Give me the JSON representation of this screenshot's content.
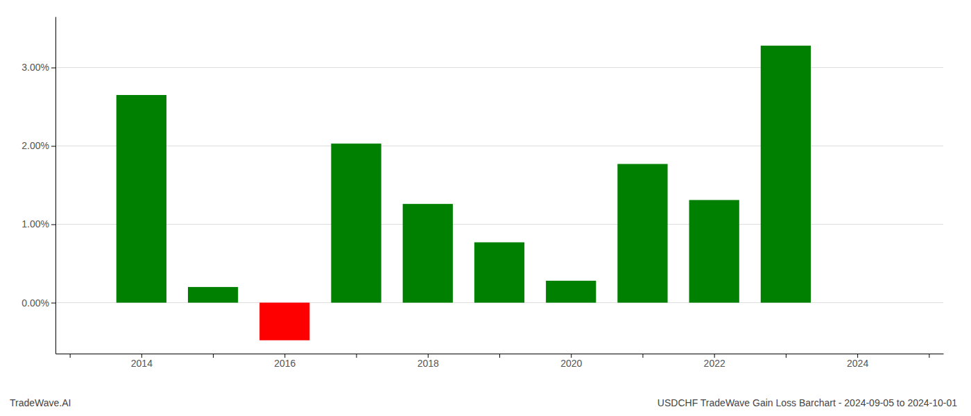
{
  "chart_data": {
    "type": "bar",
    "title": "USDCHF TradeWave Gain Loss Barchart - 2024-09-05 to 2024-10-01",
    "annotations": [
      "TradeWave.AI"
    ],
    "x": [
      2014,
      2015,
      2016,
      2017,
      2018,
      2019,
      2020,
      2021,
      2022,
      2023
    ],
    "values": [
      2.65,
      0.2,
      -0.48,
      2.03,
      1.26,
      0.77,
      0.28,
      1.77,
      1.31,
      3.28
    ],
    "colors": [
      "#008000",
      "#008000",
      "#ff0000",
      "#008000",
      "#008000",
      "#008000",
      "#008000",
      "#008000",
      "#008000",
      "#008000"
    ],
    "xlim": [
      2012.8,
      2025.2
    ],
    "xticks": [
      {
        "value": 2013,
        "label": null
      },
      2014,
      {
        "value": 2015,
        "label": null
      },
      2016,
      {
        "value": 2017,
        "label": null
      },
      2018,
      {
        "value": 2019,
        "label": null
      },
      2020,
      {
        "value": 2021,
        "label": null
      },
      2022,
      {
        "value": 2023,
        "label": null
      },
      2024,
      {
        "value": 2025,
        "label": null
      }
    ],
    "ylim": [
      -0.65,
      3.65
    ],
    "yticks": [
      {
        "value": 0.0,
        "label": "0.00%"
      },
      {
        "value": 1.0,
        "label": "1.00%"
      },
      {
        "value": 2.0,
        "label": "2.00%"
      },
      {
        "value": 3.0,
        "label": "3.00%"
      }
    ],
    "grid": true
  }
}
